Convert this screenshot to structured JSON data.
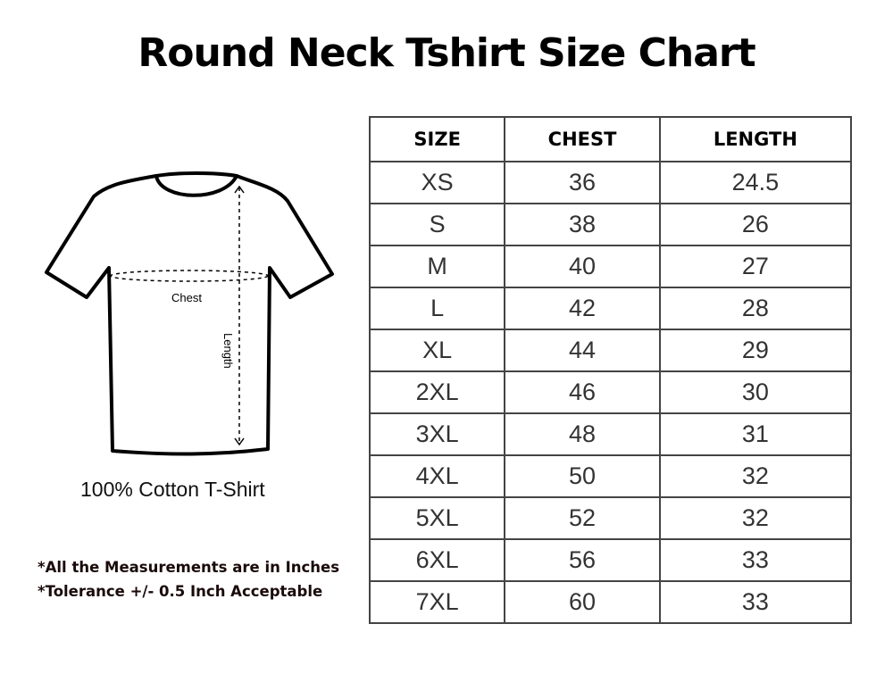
{
  "title": "Round Neck Tshirt Size Chart",
  "diagram": {
    "chest_label": "Chest",
    "length_label": "Length",
    "caption": "100% Cotton T-Shirt"
  },
  "notes": [
    "*All the Measurements are in Inches",
    "*Tolerance +/- 0.5 Inch Acceptable"
  ],
  "table": {
    "headers": [
      "SIZE",
      "CHEST",
      "LENGTH"
    ],
    "rows": [
      [
        "XS",
        "36",
        "24.5"
      ],
      [
        "S",
        "38",
        "26"
      ],
      [
        "M",
        "40",
        "27"
      ],
      [
        "L",
        "42",
        "28"
      ],
      [
        "XL",
        "44",
        "29"
      ],
      [
        "2XL",
        "46",
        "30"
      ],
      [
        "3XL",
        "48",
        "31"
      ],
      [
        "4XL",
        "50",
        "32"
      ],
      [
        "5XL",
        "52",
        "32"
      ],
      [
        "6XL",
        "56",
        "33"
      ],
      [
        "7XL",
        "60",
        "33"
      ]
    ]
  }
}
